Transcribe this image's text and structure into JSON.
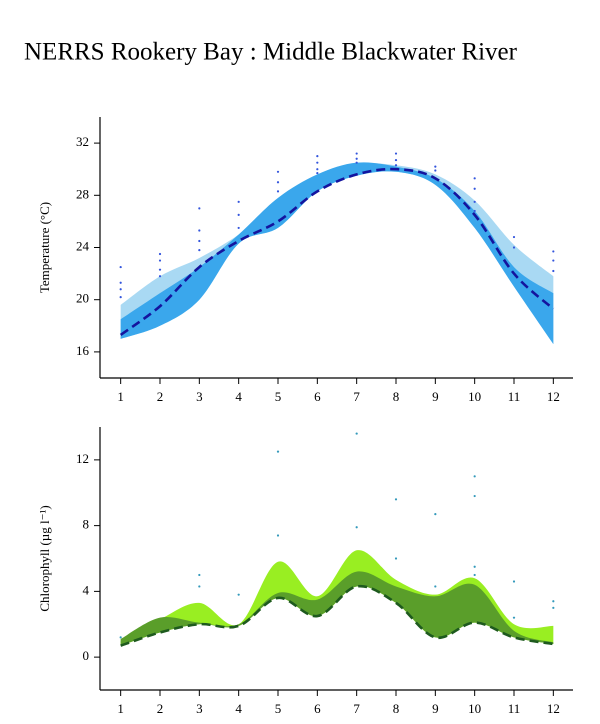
{
  "title": "NERRS Rookery Bay : Middle Blackwater River",
  "chart_data": [
    {
      "type": "line",
      "ylabel": "Temperature (°C)",
      "x": [
        1,
        2,
        3,
        4,
        5,
        6,
        7,
        8,
        9,
        10,
        11,
        12
      ],
      "xlim": [
        0.5,
        12.5
      ],
      "ylim": [
        14,
        34
      ],
      "xticks": [
        1,
        2,
        3,
        4,
        5,
        6,
        7,
        8,
        9,
        10,
        11,
        12
      ],
      "yticks": [
        16,
        20,
        24,
        28,
        32
      ],
      "bands": [
        {
          "color": "#a9d9f3",
          "low": [
            17,
            18,
            20,
            24.3,
            25.5,
            28.3,
            29.5,
            29.8,
            28.8,
            25.5,
            21,
            16.6
          ],
          "high": [
            19.6,
            21.8,
            23.2,
            25,
            27.5,
            29.5,
            30.4,
            30.3,
            29.6,
            27.6,
            24.2,
            21.8
          ]
        },
        {
          "color": "#3aa7ec",
          "low": [
            17,
            18,
            20,
            24.3,
            25.5,
            28.3,
            29.5,
            29.8,
            28.8,
            25.5,
            21,
            16.6
          ],
          "high": [
            18.5,
            20.5,
            22.5,
            25,
            27.8,
            29.6,
            30.5,
            30.2,
            29.3,
            26.8,
            22.5,
            20.5
          ]
        }
      ],
      "line": {
        "color": "#14149e",
        "values": [
          17.3,
          19.5,
          22.5,
          24.5,
          26,
          28.3,
          29.6,
          30,
          29.3,
          26.5,
          22,
          19.3
        ]
      },
      "points": {
        "color": "#3355dd",
        "x": [
          1,
          1,
          1,
          1,
          2,
          2,
          2,
          2,
          3,
          3,
          3,
          3,
          4,
          4,
          4,
          5,
          5,
          5,
          6,
          6,
          6,
          6,
          7,
          7,
          7,
          8,
          8,
          8,
          9,
          9,
          10,
          10,
          10,
          10,
          11,
          11,
          12,
          12,
          12
        ],
        "y": [
          22.5,
          21.3,
          20.8,
          20.2,
          23.5,
          23,
          22.3,
          21.8,
          27,
          25.3,
          24.5,
          23.8,
          27.5,
          26.5,
          25.5,
          29.8,
          29,
          28.3,
          31,
          30.5,
          30,
          29.7,
          31.2,
          30.8,
          30.5,
          31.2,
          30.7,
          30.3,
          30.2,
          29.9,
          29.3,
          28.5,
          27.5,
          26.8,
          24.8,
          24,
          23.7,
          23,
          22.2
        ]
      }
    },
    {
      "type": "line",
      "ylabel": "Chlorophyll (µg l⁻¹)",
      "x": [
        1,
        2,
        3,
        4,
        5,
        6,
        7,
        8,
        9,
        10,
        11,
        12
      ],
      "xlim": [
        0.5,
        12.5
      ],
      "ylim": [
        -2,
        14
      ],
      "xticks": [
        1,
        2,
        3,
        4,
        5,
        6,
        7,
        8,
        9,
        10,
        11,
        12
      ],
      "yticks": [
        0,
        4,
        8,
        12
      ],
      "bands": [
        {
          "color": "#99ee22",
          "low": [
            0.7,
            1.5,
            2,
            1.9,
            3.6,
            2.5,
            4.3,
            3.3,
            1.2,
            2.1,
            1.2,
            0.8
          ],
          "high": [
            1,
            2.3,
            3.3,
            2,
            5.8,
            3.7,
            6.5,
            4.7,
            3.8,
            4.8,
            2,
            1.9
          ]
        },
        {
          "color": "#5a9e2a",
          "low": [
            0.7,
            1.5,
            2,
            1.9,
            3.6,
            2.5,
            4.3,
            3.3,
            1.2,
            2.1,
            1.2,
            0.8
          ],
          "high": [
            1.1,
            2.4,
            2.1,
            2,
            3.9,
            3.5,
            5.2,
            4.3,
            3.7,
            4.4,
            1.6,
            0.9
          ]
        }
      ],
      "line": {
        "color": "#1e5a1e",
        "values": [
          0.7,
          1.5,
          2,
          1.9,
          3.6,
          2.5,
          4.3,
          3.3,
          1.2,
          2.1,
          1.2,
          0.8
        ]
      },
      "points": {
        "color": "#3399bb",
        "x": [
          1,
          3,
          3,
          4,
          5,
          5,
          7,
          7,
          8,
          8,
          9,
          9,
          10,
          10,
          10,
          10,
          11,
          11,
          12,
          12
        ],
        "y": [
          1.2,
          5,
          4.3,
          3.8,
          12.5,
          7.4,
          13.6,
          7.9,
          9.6,
          6,
          8.7,
          4.3,
          11,
          9.8,
          5.5,
          5,
          4.6,
          2.4,
          3.4,
          3
        ]
      }
    }
  ]
}
